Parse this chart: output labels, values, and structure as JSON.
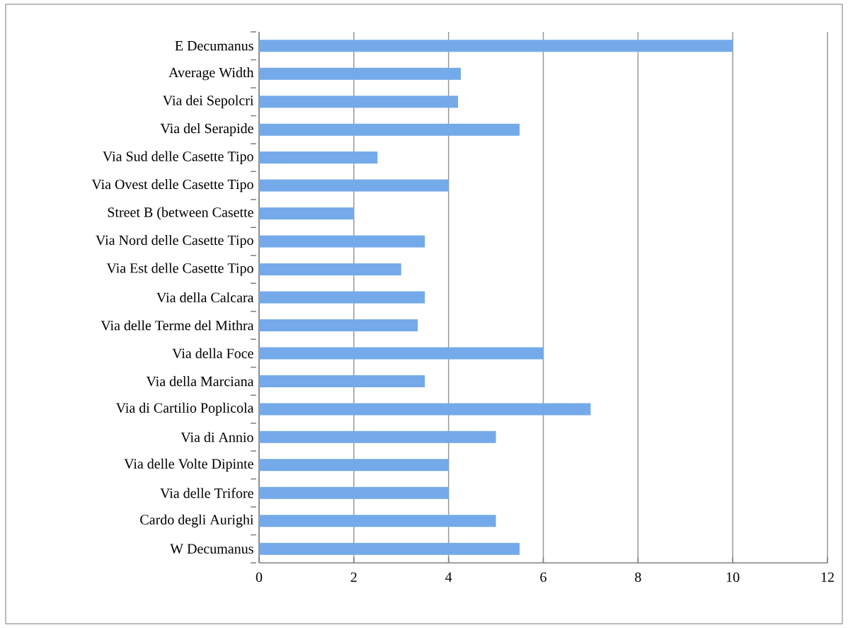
{
  "chart_data": {
    "type": "bar",
    "orientation": "horizontal",
    "categories": [
      "E Decumanus",
      "Average Width",
      "Via dei Sepolcri",
      "Via del Serapide",
      "Via Sud delle Casette Tipo",
      "Via Ovest delle Casette Tipo",
      "Street B (between Casette",
      "Via Nord delle Casette Tipo",
      "Via Est delle Casette Tipo",
      "Via della Calcara",
      "Via delle Terme del Mithra",
      "Via della Foce",
      "Via della Marciana",
      "Via di Cartilio Poplicola",
      "Via di Annio",
      "Via delle Volte Dipinte",
      "Via delle Trifore",
      "Cardo degli Aurighi",
      "W Decumanus"
    ],
    "values": [
      10.0,
      4.26,
      4.2,
      5.5,
      2.5,
      4.0,
      2.0,
      3.5,
      3.0,
      3.5,
      3.35,
      6.0,
      3.5,
      7.0,
      5.0,
      4.0,
      4.0,
      5.0,
      5.5
    ],
    "color": "#74aaea",
    "xlim": [
      0,
      12
    ],
    "xticks": [
      0,
      2,
      4,
      6,
      8,
      10,
      12
    ],
    "grid": "x"
  }
}
